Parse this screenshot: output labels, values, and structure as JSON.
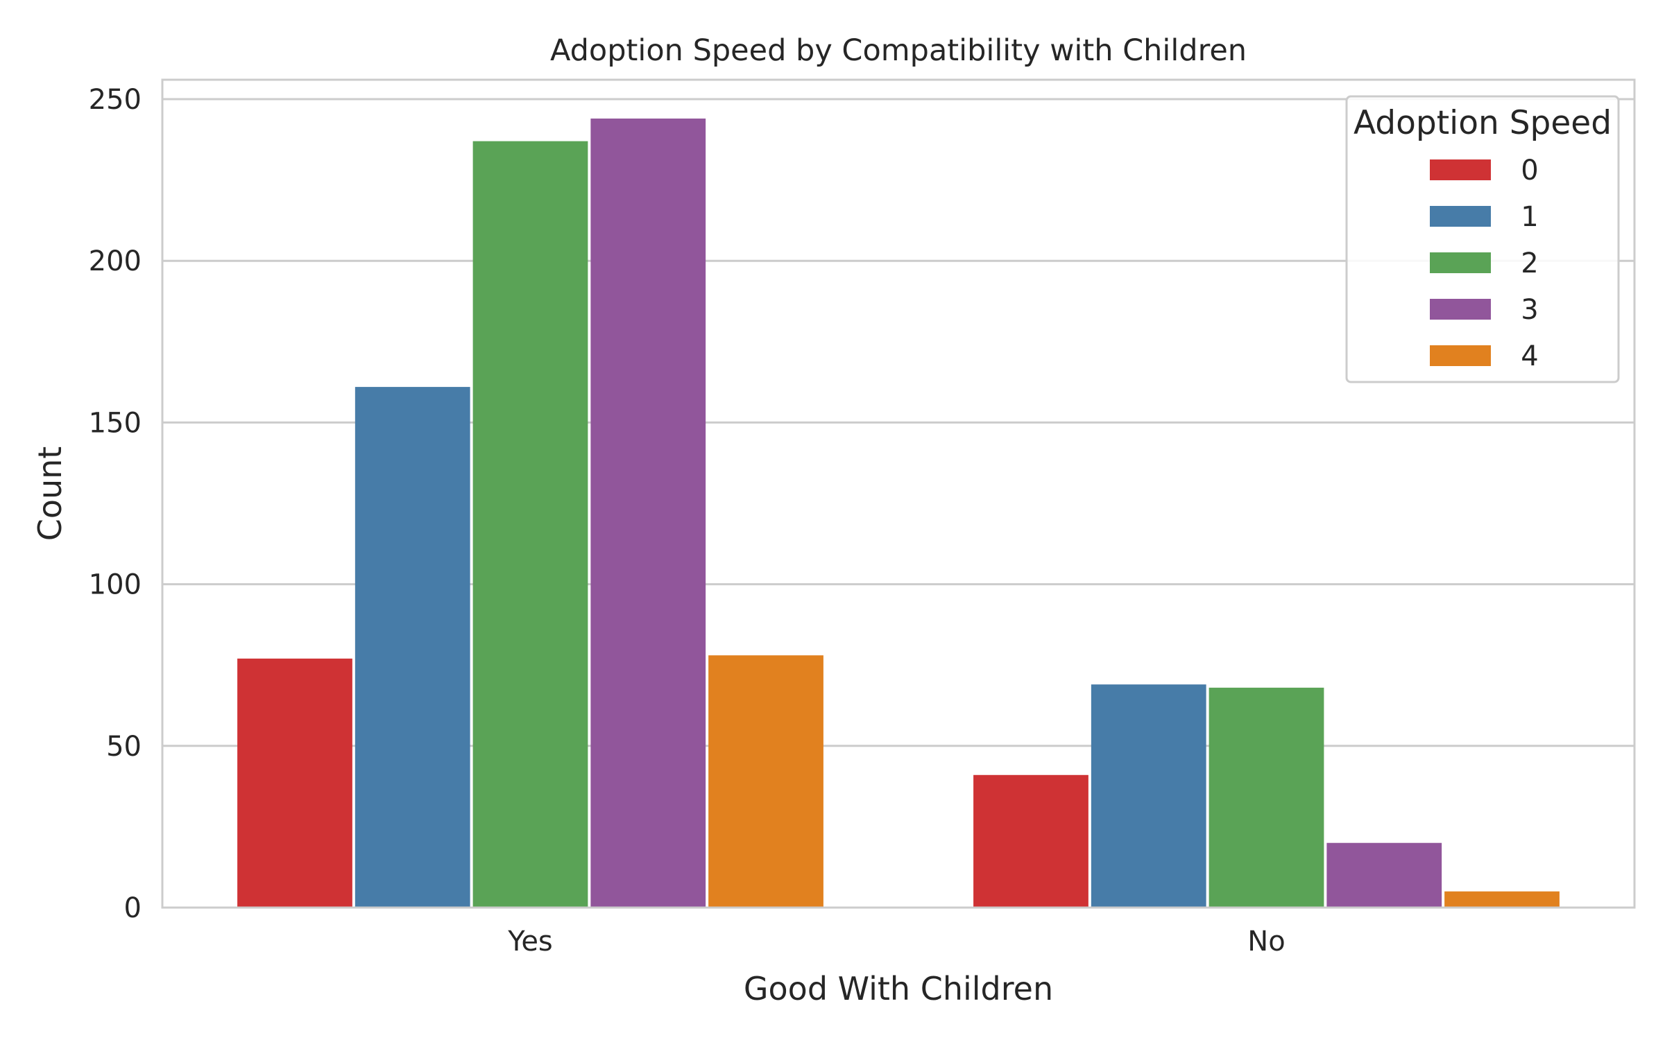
{
  "chart_data": {
    "type": "bar",
    "title": "Adoption Speed by Compatibility with Children",
    "xlabel": "Good With Children",
    "ylabel": "Count",
    "categories": [
      "Yes",
      "No"
    ],
    "ylim": [
      0,
      256
    ],
    "yticks": [
      0,
      50,
      100,
      150,
      200,
      250
    ],
    "grid": true,
    "legend": {
      "title": "Adoption Speed",
      "placement": "top-right"
    },
    "series": [
      {
        "name": "0",
        "color": "#CF3234",
        "values": [
          77,
          41
        ]
      },
      {
        "name": "1",
        "color": "#477CA8",
        "values": [
          161,
          69
        ]
      },
      {
        "name": "2",
        "color": "#5AA356",
        "values": [
          237,
          68
        ]
      },
      {
        "name": "3",
        "color": "#91569B",
        "values": [
          244,
          20
        ]
      },
      {
        "name": "4",
        "color": "#E1811F",
        "values": [
          78,
          5
        ]
      }
    ]
  }
}
